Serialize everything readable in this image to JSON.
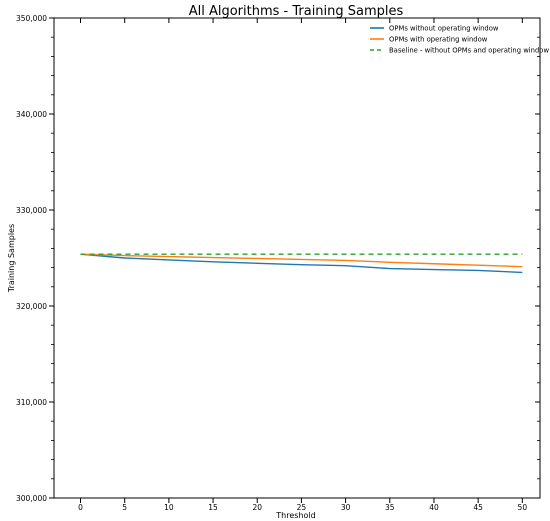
{
  "chart_data": {
    "type": "line",
    "title": "All Algorithms - Training Samples",
    "xlabel": "Threshold",
    "ylabel": "Training Samples",
    "xlim": [
      -3,
      52
    ],
    "ylim": [
      300000,
      350000
    ],
    "xticks": [
      0,
      5,
      10,
      15,
      20,
      25,
      30,
      35,
      40,
      45,
      50
    ],
    "yticks": [
      300000,
      310000,
      320000,
      330000,
      340000,
      350000
    ],
    "ytick_labels": [
      "300,000",
      "310,000",
      "320,000",
      "330,000",
      "340,000",
      "350,000"
    ],
    "legend_position": "top-right",
    "grid": false,
    "x": [
      0,
      5,
      10,
      15,
      20,
      25,
      30,
      35,
      40,
      45,
      50
    ],
    "series": [
      {
        "name": "OPMs without operating window",
        "color": "#1f77b4",
        "style": "solid",
        "values": [
          325400,
          325000,
          324800,
          324600,
          324450,
          324300,
          324200,
          323900,
          323800,
          323700,
          323500
        ]
      },
      {
        "name": "OPMs with operating window",
        "color": "#ff7f0e",
        "style": "solid",
        "values": [
          325400,
          325250,
          325150,
          325050,
          324950,
          324850,
          324750,
          324550,
          324400,
          324250,
          324100
        ]
      },
      {
        "name": "Baseline - without OPMs and operating window",
        "color": "#2ca02c",
        "style": "dashed",
        "values": [
          325400,
          325400,
          325400,
          325400,
          325400,
          325400,
          325400,
          325400,
          325400,
          325400,
          325400
        ]
      }
    ]
  }
}
